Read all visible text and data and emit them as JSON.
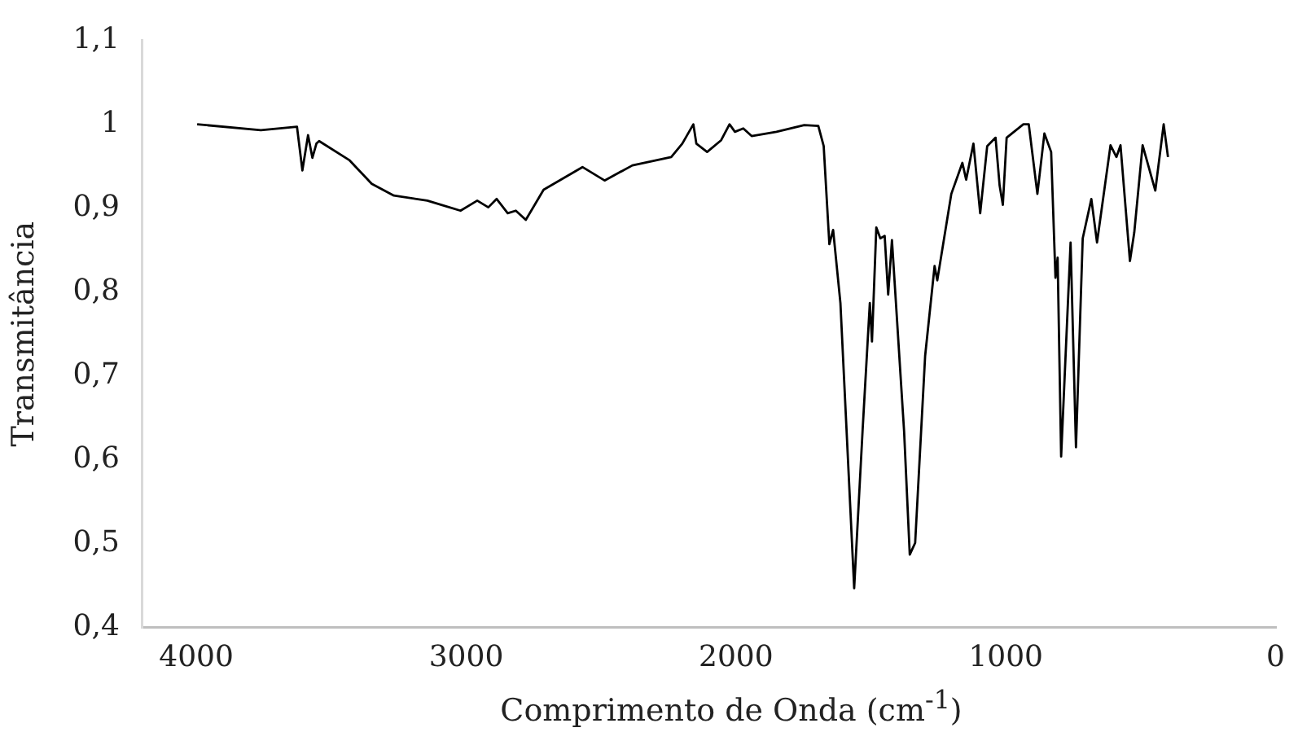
{
  "chart_data": {
    "type": "line",
    "xlabel": "Comprimento de Onda (cm$^{-1}$)",
    "ylabel": "Transmitância",
    "xlim": [
      4200,
      0
    ],
    "xticks": [
      4000,
      3000,
      2000,
      1000,
      0
    ],
    "ylim": [
      0.4,
      1.1
    ],
    "yticks": [
      {
        "value": 0.4,
        "label": "0,4"
      },
      {
        "value": 0.5,
        "label": "0,5"
      },
      {
        "value": 0.6,
        "label": "0,6"
      },
      {
        "value": 0.7,
        "label": "0,7"
      },
      {
        "value": 0.8,
        "label": "0,8"
      },
      {
        "value": 0.9,
        "label": "0,9"
      },
      1,
      {
        "value": 1.1,
        "label": "1,1"
      }
    ],
    "grid": false,
    "legend": false,
    "marker": "none",
    "line_style": "solid",
    "series": [
      {
        "color": "#000000",
        "x": [
          3997,
          3761,
          3627,
          3607,
          3586,
          3570,
          3555,
          3545,
          3432,
          3350,
          3268,
          3144,
          3021,
          2959,
          2918,
          2887,
          2846,
          2816,
          2779,
          2713,
          2569,
          2487,
          2384,
          2240,
          2199,
          2158,
          2147,
          2107,
          2055,
          2024,
          2004,
          1973,
          1942,
          1850,
          1747,
          1695,
          1675,
          1654,
          1640,
          1613,
          1562,
          1531,
          1504,
          1496,
          1480,
          1465,
          1449,
          1436,
          1422,
          1377,
          1356,
          1336,
          1299,
          1264,
          1254,
          1202,
          1161,
          1147,
          1120,
          1095,
          1069,
          1038,
          1023,
          1011,
          997,
          935,
          915,
          883,
          857,
          832,
          816,
          808,
          795,
          760,
          740,
          715,
          683,
          662,
          612,
          590,
          575,
          540,
          524,
          493,
          446,
          415,
          399
        ],
        "values": [
          1.0,
          0.993,
          0.997,
          0.945,
          0.987,
          0.96,
          0.977,
          0.98,
          0.957,
          0.929,
          0.915,
          0.909,
          0.897,
          0.909,
          0.901,
          0.911,
          0.894,
          0.897,
          0.886,
          0.922,
          0.949,
          0.933,
          0.951,
          0.961,
          0.977,
          1.0,
          0.977,
          0.967,
          0.981,
          1.0,
          0.991,
          0.995,
          0.986,
          0.991,
          0.999,
          0.998,
          0.974,
          0.857,
          0.874,
          0.787,
          0.447,
          0.634,
          0.787,
          0.741,
          0.877,
          0.864,
          0.867,
          0.797,
          0.862,
          0.634,
          0.487,
          0.501,
          0.724,
          0.831,
          0.814,
          0.917,
          0.954,
          0.934,
          0.977,
          0.894,
          0.974,
          0.984,
          0.927,
          0.904,
          0.984,
          1.0,
          1.0,
          0.917,
          0.989,
          0.967,
          0.817,
          0.841,
          0.604,
          0.859,
          0.615,
          0.864,
          0.911,
          0.859,
          0.975,
          0.961,
          0.975,
          0.837,
          0.871,
          0.975,
          0.921,
          1.0,
          0.961
        ]
      }
    ]
  }
}
